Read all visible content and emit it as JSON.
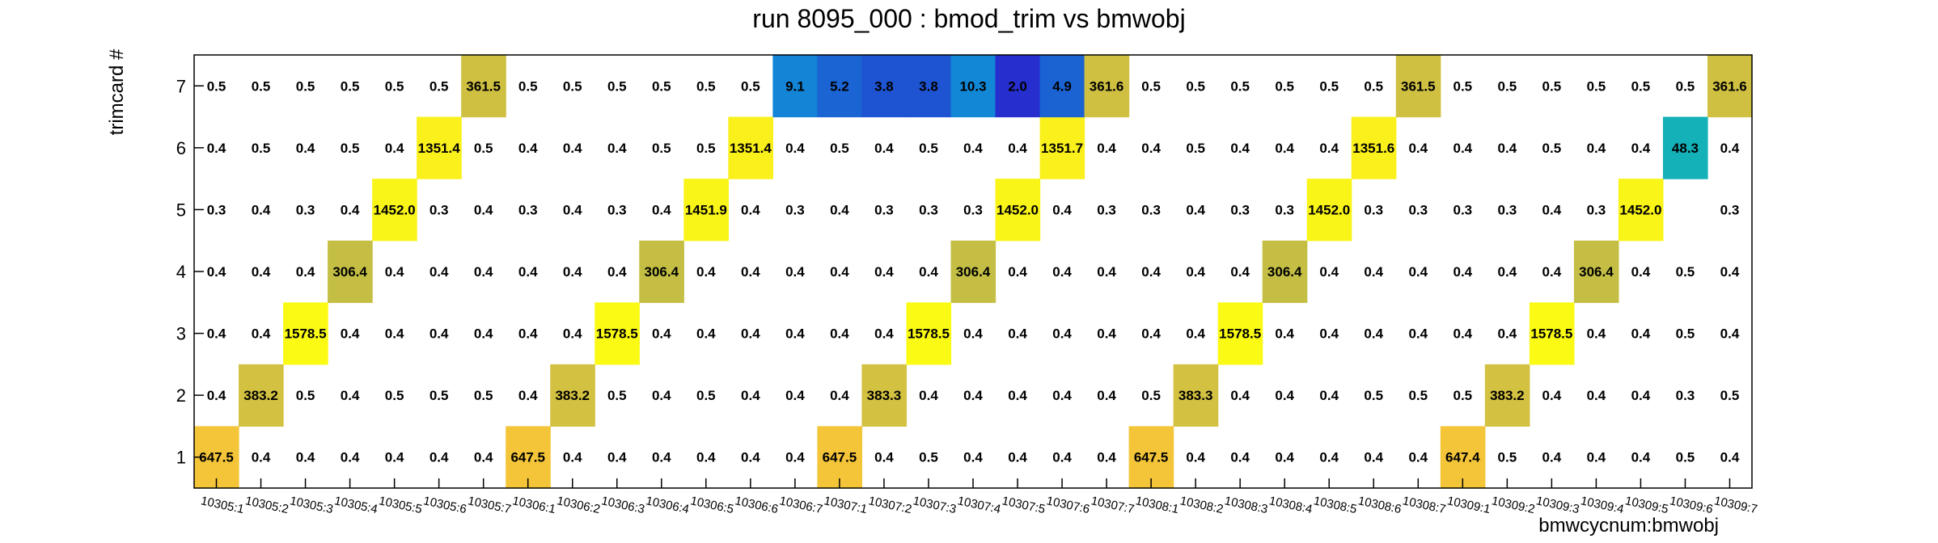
{
  "chart_data": {
    "type": "heatmap",
    "title": "run 8095_000 : bmod_trim vs bmwobj",
    "xlabel": "bmwcycnum:bmwobj",
    "ylabel": "trimcard #",
    "x_categories": [
      "10305:1",
      "10305:2",
      "10305:3",
      "10305:4",
      "10305:5",
      "10305:6",
      "10305:7",
      "10306:1",
      "10306:2",
      "10306:3",
      "10306:4",
      "10306:5",
      "10306:6",
      "10306:7",
      "10307:1",
      "10307:2",
      "10307:3",
      "10307:4",
      "10307:5",
      "10307:6",
      "10307:7",
      "10308:1",
      "10308:2",
      "10308:3",
      "10308:4",
      "10308:5",
      "10308:6",
      "10308:7",
      "10309:1",
      "10309:2",
      "10309:3",
      "10309:4",
      "10309:5",
      "10309:6",
      "10309:7"
    ],
    "y_categories": [
      "1",
      "2",
      "3",
      "4",
      "5",
      "6",
      "7"
    ],
    "values": [
      [
        647.5,
        0.4,
        0.4,
        0.4,
        0.4,
        0.4,
        0.4,
        647.5,
        0.4,
        0.4,
        0.4,
        0.4,
        0.4,
        0.4,
        647.5,
        0.4,
        0.5,
        0.4,
        0.4,
        0.4,
        0.4,
        647.5,
        0.4,
        0.4,
        0.4,
        0.4,
        0.4,
        0.4,
        647.4,
        0.5,
        0.4,
        0.4,
        0.4,
        0.5,
        0.4
      ],
      [
        0.4,
        383.2,
        0.5,
        0.4,
        0.5,
        0.5,
        0.5,
        0.4,
        383.2,
        0.5,
        0.4,
        0.5,
        0.4,
        0.4,
        0.4,
        383.3,
        0.4,
        0.4,
        0.4,
        0.4,
        0.4,
        0.5,
        383.3,
        0.4,
        0.4,
        0.4,
        0.5,
        0.5,
        0.5,
        383.2,
        0.4,
        0.4,
        0.4,
        0.3,
        0.5
      ],
      [
        0.4,
        0.4,
        1578.5,
        0.4,
        0.4,
        0.4,
        0.4,
        0.4,
        0.4,
        1578.5,
        0.4,
        0.4,
        0.4,
        0.4,
        0.4,
        0.4,
        1578.5,
        0.4,
        0.4,
        0.4,
        0.4,
        0.4,
        0.4,
        1578.5,
        0.4,
        0.4,
        0.4,
        0.4,
        0.4,
        0.4,
        1578.5,
        0.4,
        0.4,
        0.5,
        0.4
      ],
      [
        0.4,
        0.4,
        0.4,
        306.4,
        0.4,
        0.4,
        0.4,
        0.4,
        0.4,
        0.4,
        306.4,
        0.4,
        0.4,
        0.4,
        0.4,
        0.4,
        0.4,
        306.4,
        0.4,
        0.4,
        0.4,
        0.4,
        0.4,
        0.4,
        306.4,
        0.4,
        0.4,
        0.4,
        0.4,
        0.4,
        0.4,
        306.4,
        0.4,
        0.5,
        0.4
      ],
      [
        0.3,
        0.4,
        0.3,
        0.4,
        1452.0,
        0.3,
        0.4,
        0.3,
        0.4,
        0.3,
        0.4,
        1451.9,
        0.4,
        0.3,
        0.4,
        0.3,
        0.3,
        0.3,
        1452.0,
        0.4,
        0.3,
        0.3,
        0.4,
        0.3,
        0.3,
        1452.0,
        0.3,
        0.3,
        0.3,
        0.3,
        0.4,
        0.3,
        1452.0,
        null,
        0.3
      ],
      [
        0.4,
        0.5,
        0.4,
        0.5,
        0.4,
        1351.4,
        0.5,
        0.4,
        0.4,
        0.4,
        0.5,
        0.5,
        1351.4,
        0.4,
        0.5,
        0.4,
        0.5,
        0.4,
        0.4,
        1351.7,
        0.4,
        0.4,
        0.5,
        0.4,
        0.4,
        0.4,
        1351.6,
        0.4,
        0.4,
        0.4,
        0.5,
        0.4,
        0.4,
        48.3,
        0.4
      ],
      [
        0.5,
        0.5,
        0.5,
        0.5,
        0.5,
        0.5,
        361.5,
        0.5,
        0.5,
        0.5,
        0.5,
        0.5,
        0.5,
        9.1,
        5.2,
        3.8,
        3.8,
        10.3,
        2.0,
        4.9,
        361.6,
        0.5,
        0.5,
        0.5,
        0.5,
        0.5,
        0.5,
        361.5,
        0.5,
        0.5,
        0.5,
        0.5,
        0.5,
        0.5,
        361.6
      ]
    ],
    "legend": "none",
    "grid": false
  }
}
